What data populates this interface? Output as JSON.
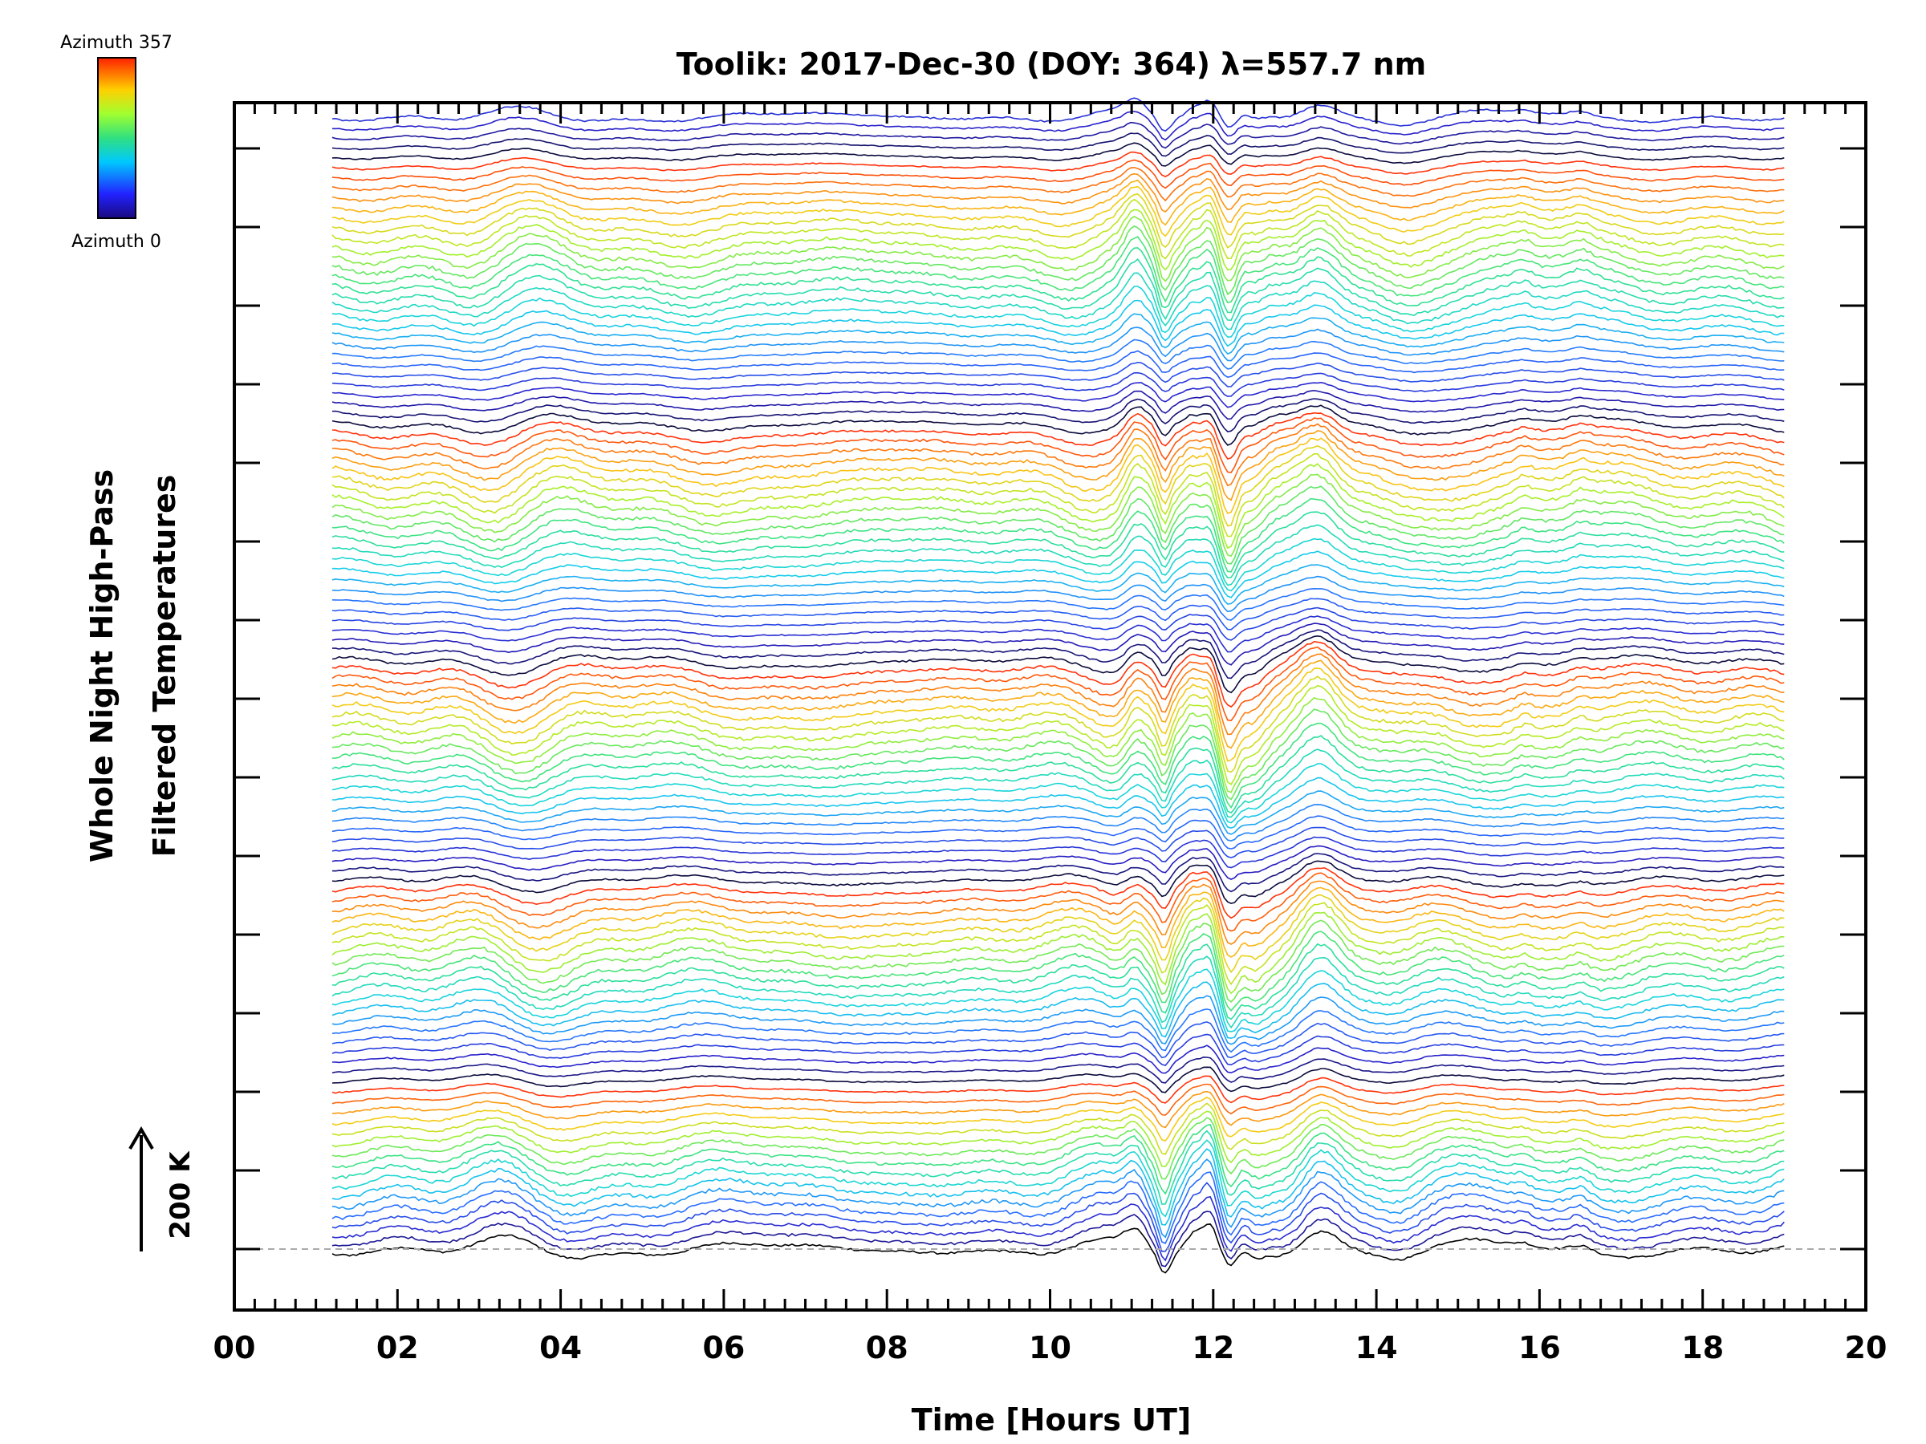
{
  "chart_data": {
    "type": "line",
    "title": "Toolik: 2017-Dec-30 (DOY: 364) λ=557.7 nm",
    "xlabel": "Time [Hours UT]",
    "ylabel_line1": "Whole Night High-Pass",
    "ylabel_line2": "Filtered Temperatures",
    "xlim": [
      0,
      20
    ],
    "x_tick_labels": [
      "00",
      "02",
      "04",
      "06",
      "08",
      "10",
      "12",
      "14",
      "16",
      "18",
      "20"
    ],
    "x_data_range": [
      1.2,
      19.0
    ],
    "stacked_traces": 115,
    "azimuth_range": [
      0,
      357
    ],
    "colorbar_top_label": "Azimuth 357",
    "colorbar_bottom_label": "Azimuth 0",
    "scale_bar_label": "200 K",
    "legend": "colorbar top-left",
    "grid": false
  }
}
